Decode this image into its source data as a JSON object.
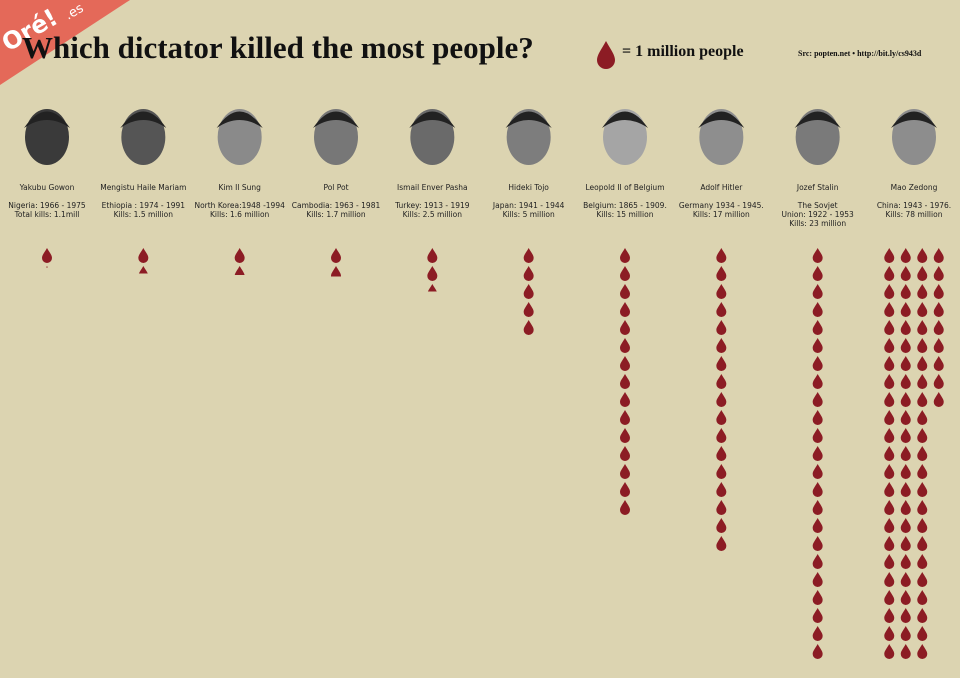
{
  "chart_data": {
    "type": "pictograph",
    "title": "Which dictator killed the most people?",
    "legend_text": "= 1 million people",
    "source": "Src: popten.net • http://bit.ly/cs943d",
    "watermark": "Oré!",
    "watermark_suffix": ".es",
    "color": "#8c1c24",
    "categories": [
      "Yakubu Gowon",
      "Mengistu Haile Mariam",
      "Kim Il Sung",
      "Pol Pot",
      "Ismail Enver Pasha",
      "Hideki Tojo",
      "Leopold II of Belgium",
      "Adolf Hitler",
      "Jozef Stalin",
      "Mao Zedong"
    ],
    "details": [
      [
        "Nigeria: 1966 - 1975"
      ],
      [
        "Ethiopia : 1974 - 1991"
      ],
      [
        "North Korea:1948 -1994"
      ],
      [
        "Cambodia: 1963 - 1981"
      ],
      [
        "Turkey: 1913 - 1919"
      ],
      [
        "Japan: 1941 - 1944"
      ],
      [
        "Belgium: 1865 - 1909."
      ],
      [
        "Germany 1934 - 1945."
      ],
      [
        "The Sovjet",
        "Union: 1922 - 1953"
      ],
      [
        "China: 1943 - 1976."
      ]
    ],
    "values": [
      1.1,
      1.5,
      1.6,
      1.7,
      2.5,
      5,
      15,
      17,
      23,
      78
    ],
    "value_labels": [
      "Total kills: 1.1mill",
      "Kills: 1.5 million",
      "Kills: 1.6 million",
      "Kills: 1.7 million",
      "Kills: 2.5 million",
      "Kills: 5 million",
      "Kills: 15 million",
      "Kills: 17 million",
      "Kills: 23 million",
      "Kills: 78 million"
    ]
  }
}
